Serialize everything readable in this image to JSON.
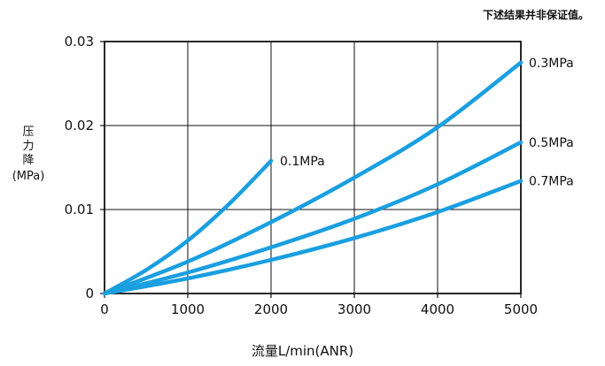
{
  "note": "下述结果并非保证值。",
  "chart_data": {
    "type": "line",
    "xlabel": "流量L/min(ANR)",
    "ylabel_chars": [
      "压",
      "力",
      "降"
    ],
    "ylabel_unit": "(MPa)",
    "xlim": [
      0,
      5000
    ],
    "ylim": [
      0,
      0.03
    ],
    "xticks": [
      0,
      1000,
      2000,
      3000,
      4000,
      5000
    ],
    "yticks": [
      0,
      0.01,
      0.02,
      0.03
    ],
    "ytick_labels": [
      "0",
      "0.01",
      "0.02",
      "0.03"
    ],
    "grid": true,
    "line_color": "#1a9fe0",
    "series": [
      {
        "name": "0.1MPa",
        "x": [
          0,
          500,
          1000,
          1500,
          2000
        ],
        "y": [
          0,
          0.0028,
          0.0063,
          0.0107,
          0.0158
        ]
      },
      {
        "name": "0.3MPa",
        "x": [
          0,
          1000,
          2000,
          3000,
          4000,
          5000
        ],
        "y": [
          0,
          0.0038,
          0.0085,
          0.0138,
          0.0198,
          0.0275
        ]
      },
      {
        "name": "0.5MPa",
        "x": [
          0,
          1000,
          2000,
          3000,
          4000,
          5000
        ],
        "y": [
          0,
          0.0025,
          0.0055,
          0.0089,
          0.013,
          0.018
        ]
      },
      {
        "name": "0.7MPa",
        "x": [
          0,
          1000,
          2000,
          3000,
          4000,
          5000
        ],
        "y": [
          0,
          0.0018,
          0.004,
          0.0066,
          0.0097,
          0.0134
        ]
      }
    ]
  }
}
